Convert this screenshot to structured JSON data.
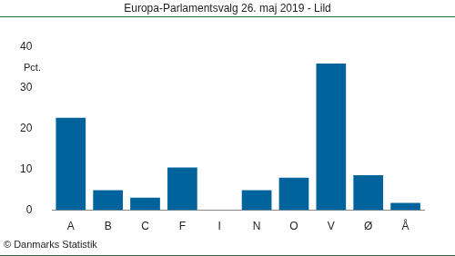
{
  "chart_data": {
    "type": "bar",
    "title": "Europa-Parlamentsvalg 26. maj 2019 - Lild",
    "y_label": "Pct.",
    "source": "© Danmarks Statistik",
    "categories": [
      "A",
      "B",
      "C",
      "F",
      "I",
      "N",
      "O",
      "V",
      "Ø",
      "Å"
    ],
    "values": [
      22.7,
      4.9,
      3.1,
      10.5,
      0,
      4.9,
      8.0,
      36.0,
      8.6,
      1.8
    ],
    "color": "#00639b",
    "ylim": [
      0,
      40
    ],
    "yticks": [
      0,
      10,
      20,
      30,
      40
    ],
    "grid": false
  }
}
